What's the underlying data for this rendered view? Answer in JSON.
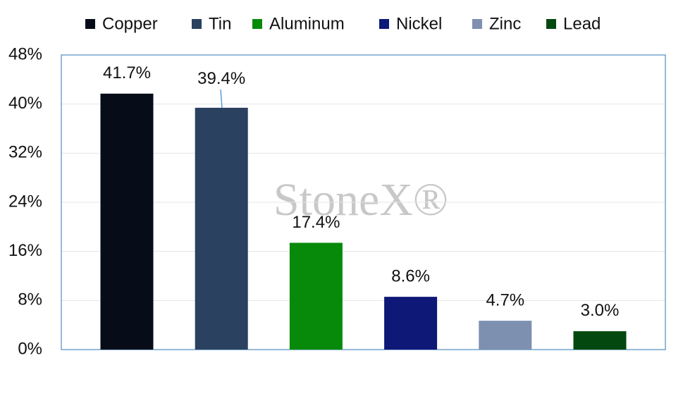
{
  "chart_data": {
    "type": "bar",
    "watermark": "StoneX®",
    "series": [
      {
        "name": "Copper",
        "color": "#060d18",
        "values": [
          41.7
        ],
        "value_labels": [
          "41.7%"
        ]
      },
      {
        "name": "Tin",
        "color": "#2a4160",
        "values": [
          39.4
        ],
        "value_labels": [
          "39.4%"
        ]
      },
      {
        "name": "Aluminum",
        "color": "#078a0a",
        "values": [
          17.4
        ],
        "value_labels": [
          "17.4%"
        ]
      },
      {
        "name": "Nickel",
        "color": "#0e1877",
        "values": [
          8.6
        ],
        "value_labels": [
          "8.6%"
        ]
      },
      {
        "name": "Zinc",
        "color": "#7d90b0",
        "values": [
          4.7
        ],
        "value_labels": [
          "4.7%"
        ]
      },
      {
        "name": "Lead",
        "color": "#03490f",
        "values": [
          3.0
        ],
        "value_labels": [
          "3.0%"
        ]
      }
    ],
    "ylim": [
      0,
      48
    ],
    "yticks": [
      {
        "value": 0,
        "label": "0%"
      },
      {
        "value": 8,
        "label": "8%"
      },
      {
        "value": 16,
        "label": "16%"
      },
      {
        "value": 24,
        "label": "24%"
      },
      {
        "value": 32,
        "label": "32%"
      },
      {
        "value": 40,
        "label": "40%"
      },
      {
        "value": 48,
        "label": "48%"
      }
    ],
    "grid": true
  }
}
